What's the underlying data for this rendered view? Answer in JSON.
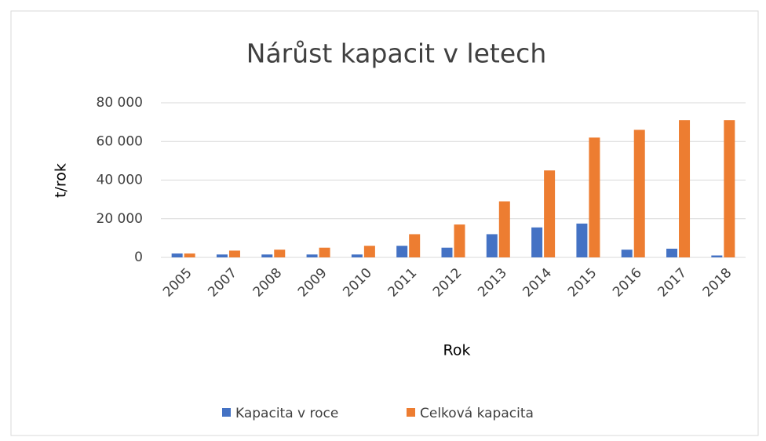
{
  "chart_data": {
    "type": "bar",
    "title": "Nárůst kapacit v letech",
    "x_label": "Rok",
    "y_label": "t/rok",
    "categories": [
      "2005",
      "2007",
      "2008",
      "2009",
      "2010",
      "2011",
      "2012",
      "2013",
      "2014",
      "2015",
      "2016",
      "2017",
      "2018"
    ],
    "series": [
      {
        "name": "Kapacita v roce",
        "color": "#4472c4",
        "values": [
          2000,
          1500,
          1500,
          1500,
          1500,
          6000,
          5000,
          12000,
          15500,
          17500,
          4000,
          4500,
          1000
        ]
      },
      {
        "name": "Celková kapacita",
        "color": "#ed7d31",
        "values": [
          2000,
          3500,
          4000,
          5000,
          6000,
          12000,
          17000,
          29000,
          45000,
          62000,
          66000,
          71000,
          71000
        ]
      }
    ],
    "ylim": [
      0,
      80000
    ],
    "yticks": [
      0,
      {
        "value": 20000,
        "label": "20 000"
      },
      {
        "value": 40000,
        "label": "40 000"
      },
      {
        "value": 60000,
        "label": "60 000"
      },
      {
        "value": 80000,
        "label": "80 000"
      }
    ],
    "grid": true,
    "legend": "bottom"
  }
}
